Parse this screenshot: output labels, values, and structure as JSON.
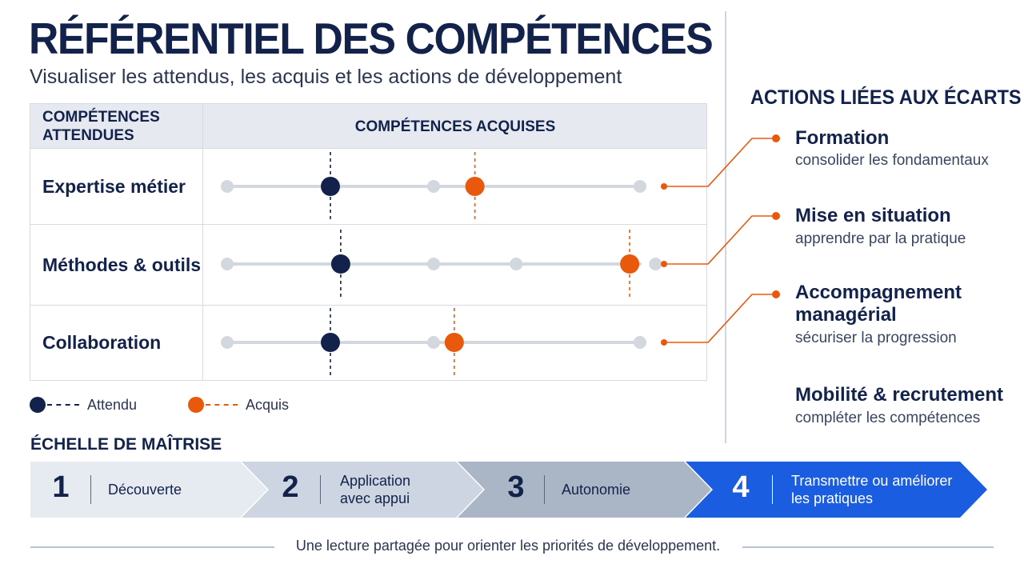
{
  "title": "RÉFÉRENTIEL DES COMPÉTENCES",
  "subtitle": "Visualiser les attendus, les acquis et les actions de développement",
  "matrix": {
    "header_left": "COMPÉTENCES ATTENDUES",
    "header_right": "COMPÉTENCES ACQUISES",
    "scale_levels": 5,
    "rows": [
      {
        "label": "Expertise métier",
        "attendu": 2,
        "acquis": 3.4,
        "ticks": [
          1,
          3,
          5
        ]
      },
      {
        "label": "Méthodes & outils",
        "attendu": 2.1,
        "acquis": 4.9,
        "ticks": [
          1,
          3,
          3.8,
          5.15
        ]
      },
      {
        "label": "Collaboration",
        "attendu": 2,
        "acquis": 3.2,
        "ticks": [
          1,
          3,
          5
        ]
      }
    ]
  },
  "legend": {
    "attendu": "Attendu",
    "acquis": "Acquis"
  },
  "actions": {
    "title": "ACTIONS LIÉES AUX ÉCARTS",
    "items": [
      {
        "title": "Formation",
        "subtitle": "consolider les fondamentaux"
      },
      {
        "title": "Mise en situation",
        "subtitle": "apprendre par la pratique"
      },
      {
        "title": "Accompagnement managérial",
        "subtitle": "sécuriser la progression"
      },
      {
        "title": "Mobilité & recrutement",
        "subtitle": "compléter les compétences"
      }
    ]
  },
  "scale": {
    "title": "ÉCHELLE DE MAÎTRISE",
    "steps": [
      {
        "num": "1",
        "label": "Découverte"
      },
      {
        "num": "2",
        "label": "Application avec appui"
      },
      {
        "num": "3",
        "label": "Autonomie"
      },
      {
        "num": "4",
        "label": "Transmettre ou améliorer les pratiques"
      }
    ]
  },
  "footer": "Une lecture partagée pour orienter les priorités de développement.",
  "colors": {
    "navy": "#13224a",
    "orange": "#e8590c",
    "track": "#d3d8df",
    "step1": "#e6ebf2",
    "step2": "#ccd5e1",
    "step3": "#aab5c6",
    "step4": "#1a5de0"
  }
}
